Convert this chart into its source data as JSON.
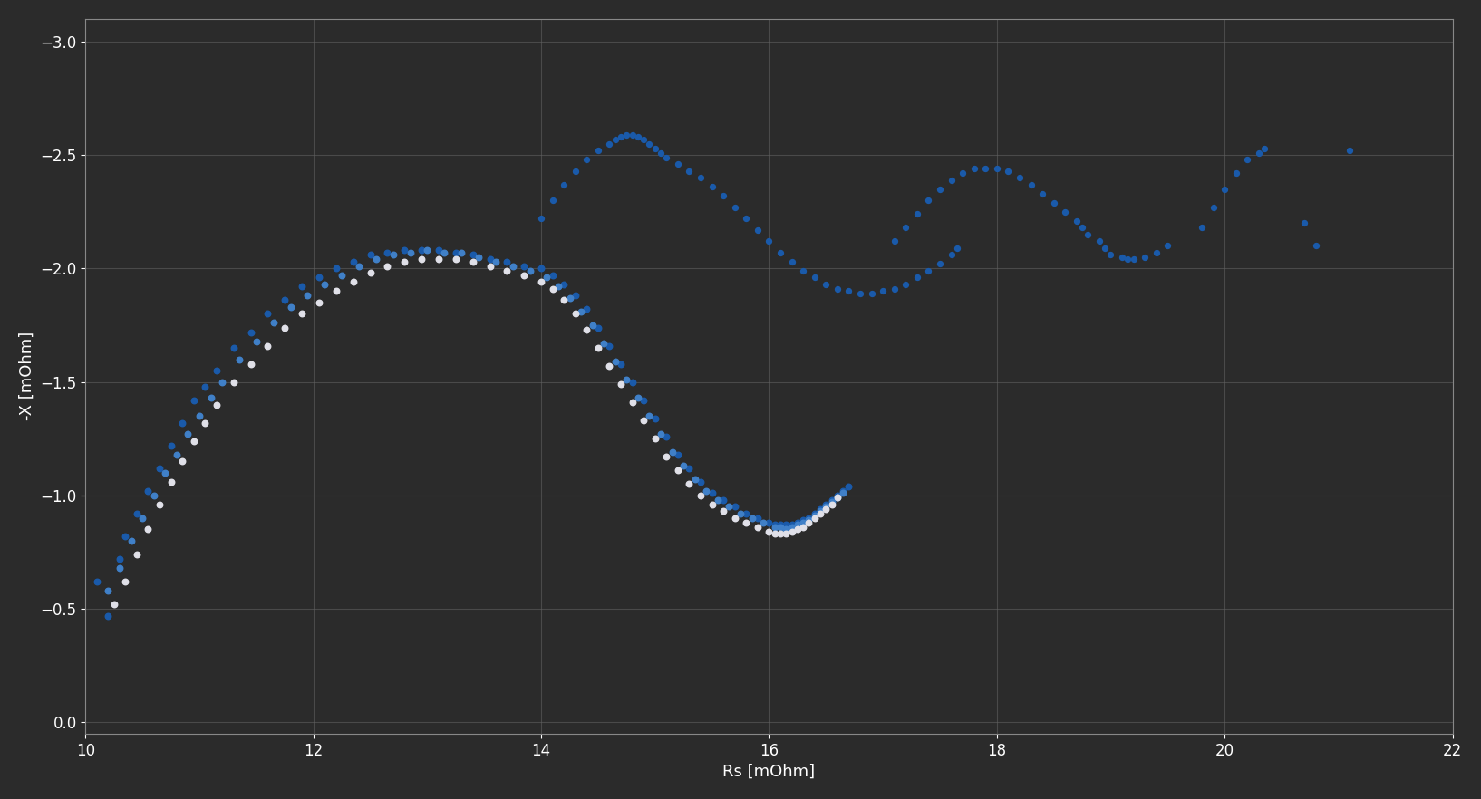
{
  "background_color": "#2b2b2b",
  "axes_bg_color": "#2b2b2b",
  "grid_color": "#606060",
  "text_color": "#ffffff",
  "xlabel": "Rs [mOhm]",
  "ylabel": "-X [mOhm]",
  "xlim": [
    10,
    22
  ],
  "ylim": [
    0.05,
    -3.1
  ],
  "xticks": [
    10,
    12,
    14,
    16,
    18,
    20,
    22
  ],
  "yticks": [
    0,
    -0.5,
    -1,
    -1.5,
    -2,
    -2.5,
    -3
  ],
  "series": [
    {
      "name": "dark_blue",
      "color": "#1a5aaa",
      "size": 22,
      "points": [
        [
          10.1,
          -0.62
        ],
        [
          10.2,
          -0.47
        ],
        [
          10.3,
          -0.72
        ],
        [
          10.35,
          -0.82
        ],
        [
          10.45,
          -0.92
        ],
        [
          10.55,
          -1.02
        ],
        [
          10.65,
          -1.12
        ],
        [
          10.75,
          -1.22
        ],
        [
          10.85,
          -1.32
        ],
        [
          10.95,
          -1.42
        ],
        [
          11.05,
          -1.48
        ],
        [
          11.15,
          -1.55
        ],
        [
          11.3,
          -1.65
        ],
        [
          11.45,
          -1.72
        ],
        [
          11.6,
          -1.8
        ],
        [
          11.75,
          -1.86
        ],
        [
          11.9,
          -1.92
        ],
        [
          12.05,
          -1.96
        ],
        [
          12.2,
          -2.0
        ],
        [
          12.35,
          -2.03
        ],
        [
          12.5,
          -2.06
        ],
        [
          12.65,
          -2.07
        ],
        [
          12.8,
          -2.08
        ],
        [
          12.95,
          -2.08
        ],
        [
          13.1,
          -2.08
        ],
        [
          13.25,
          -2.07
        ],
        [
          13.4,
          -2.06
        ],
        [
          13.55,
          -2.04
        ],
        [
          13.7,
          -2.03
        ],
        [
          13.85,
          -2.01
        ],
        [
          14.0,
          -2.0
        ],
        [
          14.1,
          -1.97
        ],
        [
          14.2,
          -1.93
        ],
        [
          14.3,
          -1.88
        ],
        [
          14.4,
          -1.82
        ],
        [
          14.5,
          -1.74
        ],
        [
          14.6,
          -1.66
        ],
        [
          14.7,
          -1.58
        ],
        [
          14.8,
          -1.5
        ],
        [
          14.9,
          -1.42
        ],
        [
          15.0,
          -1.34
        ],
        [
          15.1,
          -1.26
        ],
        [
          15.2,
          -1.18
        ],
        [
          15.3,
          -1.12
        ],
        [
          15.4,
          -1.06
        ],
        [
          15.5,
          -1.01
        ],
        [
          15.6,
          -0.98
        ],
        [
          15.7,
          -0.95
        ],
        [
          15.8,
          -0.92
        ],
        [
          15.9,
          -0.9
        ],
        [
          16.0,
          -0.88
        ],
        [
          16.05,
          -0.87
        ],
        [
          16.1,
          -0.87
        ],
        [
          16.15,
          -0.87
        ],
        [
          16.2,
          -0.87
        ],
        [
          16.25,
          -0.88
        ],
        [
          16.3,
          -0.89
        ],
        [
          16.35,
          -0.9
        ],
        [
          16.4,
          -0.92
        ],
        [
          16.45,
          -0.94
        ],
        [
          16.5,
          -0.96
        ],
        [
          16.55,
          -0.98
        ],
        [
          16.6,
          -1.0
        ],
        [
          16.65,
          -1.02
        ],
        [
          16.7,
          -1.04
        ]
      ]
    },
    {
      "name": "medium_blue",
      "color": "#4080c8",
      "size": 22,
      "points": [
        [
          10.2,
          -0.58
        ],
        [
          10.3,
          -0.68
        ],
        [
          10.4,
          -0.8
        ],
        [
          10.5,
          -0.9
        ],
        [
          10.6,
          -1.0
        ],
        [
          10.7,
          -1.1
        ],
        [
          10.8,
          -1.18
        ],
        [
          10.9,
          -1.27
        ],
        [
          11.0,
          -1.35
        ],
        [
          11.1,
          -1.43
        ],
        [
          11.2,
          -1.5
        ],
        [
          11.35,
          -1.6
        ],
        [
          11.5,
          -1.68
        ],
        [
          11.65,
          -1.76
        ],
        [
          11.8,
          -1.83
        ],
        [
          11.95,
          -1.88
        ],
        [
          12.1,
          -1.93
        ],
        [
          12.25,
          -1.97
        ],
        [
          12.4,
          -2.01
        ],
        [
          12.55,
          -2.04
        ],
        [
          12.7,
          -2.06
        ],
        [
          12.85,
          -2.07
        ],
        [
          13.0,
          -2.08
        ],
        [
          13.15,
          -2.07
        ],
        [
          13.3,
          -2.07
        ],
        [
          13.45,
          -2.05
        ],
        [
          13.6,
          -2.03
        ],
        [
          13.75,
          -2.01
        ],
        [
          13.9,
          -1.99
        ],
        [
          14.05,
          -1.96
        ],
        [
          14.15,
          -1.92
        ],
        [
          14.25,
          -1.87
        ],
        [
          14.35,
          -1.81
        ],
        [
          14.45,
          -1.75
        ],
        [
          14.55,
          -1.67
        ],
        [
          14.65,
          -1.59
        ],
        [
          14.75,
          -1.51
        ],
        [
          14.85,
          -1.43
        ],
        [
          14.95,
          -1.35
        ],
        [
          15.05,
          -1.27
        ],
        [
          15.15,
          -1.19
        ],
        [
          15.25,
          -1.13
        ],
        [
          15.35,
          -1.07
        ],
        [
          15.45,
          -1.02
        ],
        [
          15.55,
          -0.98
        ],
        [
          15.65,
          -0.95
        ],
        [
          15.75,
          -0.92
        ],
        [
          15.85,
          -0.9
        ],
        [
          15.95,
          -0.88
        ],
        [
          16.05,
          -0.86
        ],
        [
          16.1,
          -0.86
        ],
        [
          16.15,
          -0.85
        ],
        [
          16.2,
          -0.86
        ],
        [
          16.25,
          -0.87
        ],
        [
          16.3,
          -0.88
        ],
        [
          16.35,
          -0.89
        ],
        [
          16.4,
          -0.91
        ],
        [
          16.45,
          -0.93
        ],
        [
          16.5,
          -0.95
        ],
        [
          16.55,
          -0.97
        ],
        [
          16.6,
          -0.99
        ],
        [
          16.65,
          -1.01
        ]
      ]
    },
    {
      "name": "white",
      "color": "#e0e0e8",
      "size": 22,
      "points": [
        [
          10.25,
          -0.52
        ],
        [
          10.35,
          -0.62
        ],
        [
          10.45,
          -0.74
        ],
        [
          10.55,
          -0.85
        ],
        [
          10.65,
          -0.96
        ],
        [
          10.75,
          -1.06
        ],
        [
          10.85,
          -1.15
        ],
        [
          10.95,
          -1.24
        ],
        [
          11.05,
          -1.32
        ],
        [
          11.15,
          -1.4
        ],
        [
          11.3,
          -1.5
        ],
        [
          11.45,
          -1.58
        ],
        [
          11.6,
          -1.66
        ],
        [
          11.75,
          -1.74
        ],
        [
          11.9,
          -1.8
        ],
        [
          12.05,
          -1.85
        ],
        [
          12.2,
          -1.9
        ],
        [
          12.35,
          -1.94
        ],
        [
          12.5,
          -1.98
        ],
        [
          12.65,
          -2.01
        ],
        [
          12.8,
          -2.03
        ],
        [
          12.95,
          -2.04
        ],
        [
          13.1,
          -2.04
        ],
        [
          13.25,
          -2.04
        ],
        [
          13.4,
          -2.03
        ],
        [
          13.55,
          -2.01
        ],
        [
          13.7,
          -1.99
        ],
        [
          13.85,
          -1.97
        ],
        [
          14.0,
          -1.94
        ],
        [
          14.1,
          -1.91
        ],
        [
          14.2,
          -1.86
        ],
        [
          14.3,
          -1.8
        ],
        [
          14.4,
          -1.73
        ],
        [
          14.5,
          -1.65
        ],
        [
          14.6,
          -1.57
        ],
        [
          14.7,
          -1.49
        ],
        [
          14.8,
          -1.41
        ],
        [
          14.9,
          -1.33
        ],
        [
          15.0,
          -1.25
        ],
        [
          15.1,
          -1.17
        ],
        [
          15.2,
          -1.11
        ],
        [
          15.3,
          -1.05
        ],
        [
          15.4,
          -1.0
        ],
        [
          15.5,
          -0.96
        ],
        [
          15.6,
          -0.93
        ],
        [
          15.7,
          -0.9
        ],
        [
          15.8,
          -0.88
        ],
        [
          15.9,
          -0.86
        ],
        [
          16.0,
          -0.84
        ],
        [
          16.05,
          -0.83
        ],
        [
          16.1,
          -0.83
        ],
        [
          16.15,
          -0.83
        ],
        [
          16.2,
          -0.84
        ],
        [
          16.25,
          -0.85
        ],
        [
          16.3,
          -0.86
        ],
        [
          16.35,
          -0.88
        ],
        [
          16.4,
          -0.9
        ],
        [
          16.45,
          -0.92
        ],
        [
          16.5,
          -0.94
        ],
        [
          16.55,
          -0.96
        ],
        [
          16.6,
          -0.99
        ]
      ]
    },
    {
      "name": "upper_arc",
      "color": "#1a5aaa",
      "size": 18,
      "points": [
        [
          14.0,
          -2.22
        ],
        [
          14.1,
          -2.3
        ],
        [
          14.2,
          -2.37
        ],
        [
          14.3,
          -2.43
        ],
        [
          14.4,
          -2.48
        ],
        [
          14.5,
          -2.52
        ],
        [
          14.6,
          -2.55
        ],
        [
          14.65,
          -2.57
        ],
        [
          14.7,
          -2.58
        ],
        [
          14.75,
          -2.59
        ],
        [
          14.8,
          -2.59
        ],
        [
          14.85,
          -2.58
        ],
        [
          14.9,
          -2.57
        ],
        [
          14.95,
          -2.55
        ],
        [
          15.0,
          -2.53
        ],
        [
          15.05,
          -2.51
        ],
        [
          15.1,
          -2.49
        ],
        [
          15.2,
          -2.46
        ],
        [
          15.3,
          -2.43
        ],
        [
          15.4,
          -2.4
        ],
        [
          15.5,
          -2.36
        ],
        [
          15.6,
          -2.32
        ],
        [
          15.7,
          -2.27
        ],
        [
          15.8,
          -2.22
        ],
        [
          15.9,
          -2.17
        ],
        [
          16.0,
          -2.12
        ],
        [
          16.1,
          -2.07
        ],
        [
          16.2,
          -2.03
        ],
        [
          16.3,
          -1.99
        ],
        [
          16.4,
          -1.96
        ],
        [
          16.5,
          -1.93
        ],
        [
          16.6,
          -1.91
        ],
        [
          16.7,
          -1.9
        ],
        [
          16.8,
          -1.89
        ],
        [
          16.9,
          -1.89
        ],
        [
          17.0,
          -1.9
        ],
        [
          17.1,
          -1.91
        ],
        [
          17.2,
          -1.93
        ],
        [
          17.3,
          -1.96
        ],
        [
          17.4,
          -1.99
        ],
        [
          17.5,
          -2.02
        ],
        [
          17.6,
          -2.06
        ],
        [
          17.65,
          -2.09
        ]
      ]
    },
    {
      "name": "right_arc",
      "color": "#1a5aaa",
      "size": 18,
      "points": [
        [
          17.1,
          -2.12
        ],
        [
          17.2,
          -2.18
        ],
        [
          17.3,
          -2.24
        ],
        [
          17.4,
          -2.3
        ],
        [
          17.5,
          -2.35
        ],
        [
          17.6,
          -2.39
        ],
        [
          17.7,
          -2.42
        ],
        [
          17.8,
          -2.44
        ],
        [
          17.9,
          -2.44
        ],
        [
          18.0,
          -2.44
        ],
        [
          18.1,
          -2.43
        ],
        [
          18.2,
          -2.4
        ],
        [
          18.3,
          -2.37
        ],
        [
          18.4,
          -2.33
        ],
        [
          18.5,
          -2.29
        ],
        [
          18.6,
          -2.25
        ],
        [
          18.7,
          -2.21
        ],
        [
          18.75,
          -2.18
        ],
        [
          18.8,
          -2.15
        ],
        [
          18.9,
          -2.12
        ],
        [
          18.95,
          -2.09
        ],
        [
          19.0,
          -2.06
        ],
        [
          19.1,
          -2.05
        ],
        [
          19.15,
          -2.04
        ],
        [
          19.2,
          -2.04
        ],
        [
          19.3,
          -2.05
        ],
        [
          19.4,
          -2.07
        ],
        [
          19.5,
          -2.1
        ]
      ]
    },
    {
      "name": "isolated_right",
      "color": "#1a5aaa",
      "size": 18,
      "points": [
        [
          19.8,
          -2.18
        ],
        [
          19.9,
          -2.27
        ],
        [
          20.0,
          -2.35
        ],
        [
          20.1,
          -2.42
        ],
        [
          20.2,
          -2.48
        ],
        [
          20.3,
          -2.51
        ],
        [
          20.35,
          -2.53
        ],
        [
          20.7,
          -2.2
        ],
        [
          20.8,
          -2.1
        ],
        [
          21.1,
          -2.52
        ]
      ]
    }
  ]
}
